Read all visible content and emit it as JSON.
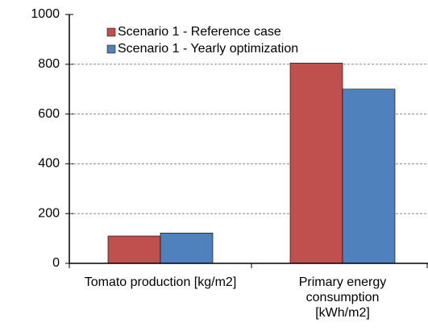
{
  "chart_data": {
    "type": "bar",
    "categories": [
      "Tomato production [kg/m2]",
      "Primary energy consumption [kWh/m2]"
    ],
    "series": [
      {
        "name": "Scenario 1 - Reference case",
        "color": "#c0504d",
        "values": [
          110,
          805
        ]
      },
      {
        "name": "Scenario 1 - Yearly optimization",
        "color": "#4f81bd",
        "values": [
          122,
          700
        ]
      }
    ],
    "ylim": [
      0,
      1000
    ],
    "yticks": [
      0,
      200,
      400,
      600,
      800,
      1000
    ],
    "grid": true,
    "legend": "top-left"
  }
}
